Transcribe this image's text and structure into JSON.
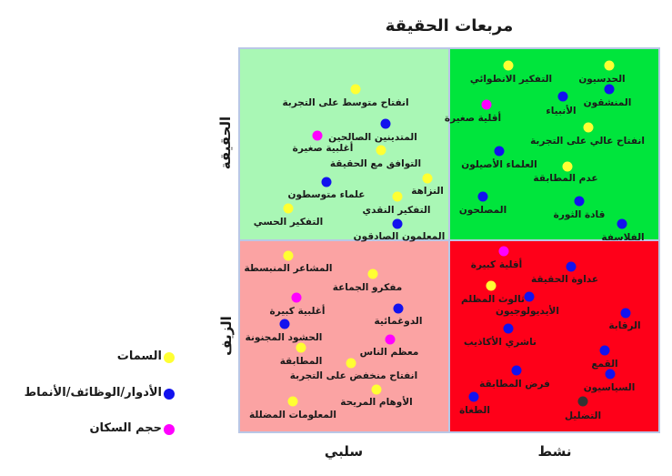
{
  "title": "مربعات الحقيقة",
  "axes": {
    "y_top": "الحقيقة",
    "y_bottom": "الزيف",
    "x_left": "سلبي",
    "x_right": "نشط"
  },
  "colors": {
    "trait": "#ffff33",
    "role": "#1212ee",
    "population": "#ff00ff",
    "misleading": "#333333",
    "truth_passive": "#a9f7b5",
    "truth_active": "#00e53c",
    "false_passive": "#fba3a3",
    "false_active": "#fe0019"
  },
  "legend": [
    {
      "label": "السمات",
      "kind": "trait"
    },
    {
      "label": "الأدوار/الوظائف/الأنماط",
      "kind": "role"
    },
    {
      "label": "حجم السكان",
      "kind": "population"
    }
  ],
  "points": [
    {
      "label": "انفتاح متوسط على التجربة",
      "kind": "trait"
    },
    {
      "label": "المتدينين الصالحين",
      "kind": "role"
    },
    {
      "label": "أغلبية صغيرة",
      "kind": "population"
    },
    {
      "label": "التوافق مع الحقيقة",
      "kind": "trait"
    },
    {
      "label": "النزاهة",
      "kind": "trait"
    },
    {
      "label": "علماء متوسطون",
      "kind": "role"
    },
    {
      "label": "التفكير النقدي",
      "kind": "trait"
    },
    {
      "label": "التفكير الحسي",
      "kind": "trait"
    },
    {
      "label": "المعلمون الصادقون",
      "kind": "role"
    },
    {
      "label": "التفكير الانطوائي",
      "kind": "trait"
    },
    {
      "label": "الحدسيون",
      "kind": "trait"
    },
    {
      "label": "المنشقون",
      "kind": "role"
    },
    {
      "label": "الأنبياء",
      "kind": "role"
    },
    {
      "label": "أقلية صغيرة",
      "kind": "population"
    },
    {
      "label": "انفتاح عالي على التجربة",
      "kind": "trait"
    },
    {
      "label": "العلماء الأصيلون",
      "kind": "role"
    },
    {
      "label": "عدم المطابقة",
      "kind": "trait"
    },
    {
      "label": "المصلحون",
      "kind": "role"
    },
    {
      "label": "قادة الثورة",
      "kind": "role"
    },
    {
      "label": "الفلاسفة",
      "kind": "role"
    },
    {
      "label": "المشاعر المنبسطة",
      "kind": "trait"
    },
    {
      "label": "مفكرو الجماعة",
      "kind": "trait"
    },
    {
      "label": "أغلبية كبيرة",
      "kind": "population"
    },
    {
      "label": "الدوغمائية",
      "kind": "role"
    },
    {
      "label": "الحشود المجنونة",
      "kind": "role"
    },
    {
      "label": "معظم الناس",
      "kind": "population"
    },
    {
      "label": "المطابقة",
      "kind": "trait"
    },
    {
      "label": "انفتاح منخفض على التجربة",
      "kind": "trait"
    },
    {
      "label": "الأوهام المريحة",
      "kind": "trait"
    },
    {
      "label": "المعلومات المضللة",
      "kind": "trait"
    },
    {
      "label": "أقلية كبيرة",
      "kind": "population"
    },
    {
      "label": "عداوة الحقيقة",
      "kind": "role"
    },
    {
      "label": "ثالوث المظلم",
      "kind": "trait"
    },
    {
      "label": "الأيديولوجيون",
      "kind": "role"
    },
    {
      "label": "الرقابة",
      "kind": "role"
    },
    {
      "label": "ناشري الأكاذيب",
      "kind": "role"
    },
    {
      "label": "القمع",
      "kind": "role"
    },
    {
      "label": "فرض المطابقة",
      "kind": "role"
    },
    {
      "label": "السياسيون",
      "kind": "role"
    },
    {
      "label": "الطغاة",
      "kind": "role"
    },
    {
      "label": "التضليل",
      "kind": "misleading"
    }
  ]
}
